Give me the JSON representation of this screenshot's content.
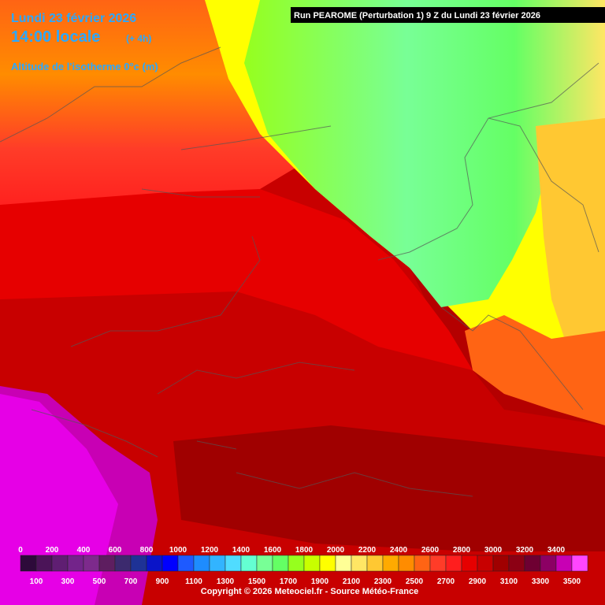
{
  "header": {
    "date": "Lundi 23 février 2026",
    "time": "14:00 locale",
    "offset": "(+ 4h)",
    "parameter": "Altitude de l'isotherme 0°c (m)",
    "run": "Run PEAROME (Perturbation 1) 9 Z du Lundi 23 février 2026"
  },
  "legend": [
    {
      "value": 0,
      "color": "#2d0a3a"
    },
    {
      "value": 100,
      "color": "#4b1458"
    },
    {
      "value": 200,
      "color": "#5f1e72"
    },
    {
      "value": 300,
      "color": "#73248a"
    },
    {
      "value": 400,
      "color": "#7d2a8c"
    },
    {
      "value": 500,
      "color": "#5e1e60"
    },
    {
      "value": 600,
      "color": "#3c2a6e"
    },
    {
      "value": 700,
      "color": "#1e3296"
    },
    {
      "value": 800,
      "color": "#0a14c8"
    },
    {
      "value": 900,
      "color": "#0000ff"
    },
    {
      "value": 1000,
      "color": "#1e5aff"
    },
    {
      "value": 1100,
      "color": "#1e8cff"
    },
    {
      "value": 1200,
      "color": "#32b4ff"
    },
    {
      "value": 1300,
      "color": "#50dcff"
    },
    {
      "value": 1400,
      "color": "#64ffd2"
    },
    {
      "value": 1500,
      "color": "#78ff96"
    },
    {
      "value": 1600,
      "color": "#64ff64"
    },
    {
      "value": 1700,
      "color": "#96ff1e"
    },
    {
      "value": 1800,
      "color": "#c8ff00"
    },
    {
      "value": 1900,
      "color": "#ffff00"
    },
    {
      "value": 2000,
      "color": "#ffff96"
    },
    {
      "value": 2100,
      "color": "#ffe664"
    },
    {
      "value": 2200,
      "color": "#ffc832"
    },
    {
      "value": 2300,
      "color": "#ffaa00"
    },
    {
      "value": 2400,
      "color": "#ff8c00"
    },
    {
      "value": 2500,
      "color": "#ff6414"
    },
    {
      "value": 2600,
      "color": "#ff3c28"
    },
    {
      "value": 2700,
      "color": "#ff1e1e"
    },
    {
      "value": 2800,
      "color": "#e60000"
    },
    {
      "value": 2900,
      "color": "#c80000"
    },
    {
      "value": 3000,
      "color": "#a00000"
    },
    {
      "value": 3100,
      "color": "#8c0014"
    },
    {
      "value": 3200,
      "color": "#6e0032"
    },
    {
      "value": 3300,
      "color": "#8c0064"
    },
    {
      "value": 3400,
      "color": "#c800b4"
    },
    {
      "value": 3500,
      "color": "#ff46ff"
    }
  ],
  "footer": {
    "copyright": "Copyright © 2026 Meteociel.fr - Source Météo-France"
  }
}
